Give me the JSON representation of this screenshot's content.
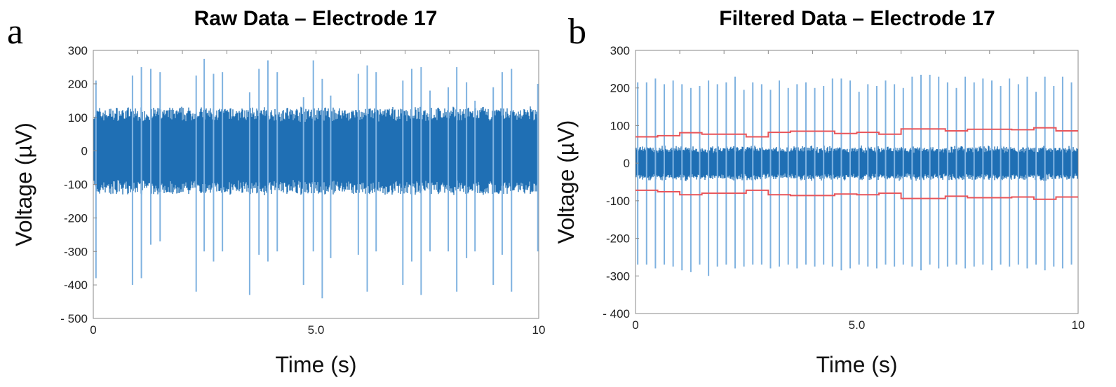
{
  "chart_data": [
    {
      "panel_label": "a",
      "type": "line",
      "title": "Raw Data – Electrode 17",
      "xlabel": "Time (s)",
      "ylabel": "Voltage (µV)",
      "xlim": [
        0,
        10
      ],
      "ylim": [
        -500,
        300
      ],
      "xticks": [
        {
          "v": 0,
          "label": "0"
        },
        {
          "v": 5,
          "label": "5.0"
        },
        {
          "v": 10,
          "label": "10"
        }
      ],
      "yticks": [
        {
          "v": 300,
          "label": "300"
        },
        {
          "v": 200,
          "label": "200"
        },
        {
          "v": 100,
          "label": "100"
        },
        {
          "v": 0,
          "label": "0"
        },
        {
          "v": -100,
          "label": "-100"
        },
        {
          "v": -200,
          "label": "-200"
        },
        {
          "v": -300,
          "label": "-300"
        },
        {
          "v": -400,
          "label": "-400"
        },
        {
          "v": -500,
          "label": "- 500"
        }
      ],
      "series_color": "#1f6fb4",
      "spike_color": "#7fb2e0",
      "noise_envelope_uV": [
        -105,
        105
      ],
      "spikes": {
        "t": [
          0.06,
          0.88,
          1.08,
          1.29,
          1.5,
          2.31,
          2.49,
          2.7,
          2.9,
          3.51,
          3.72,
          3.92,
          4.13,
          4.72,
          4.94,
          5.14,
          5.33,
          5.95,
          6.15,
          6.35,
          6.95,
          7.15,
          7.36,
          7.56,
          7.97,
          8.16,
          8.38,
          8.57,
          8.98,
          9.18,
          9.39,
          9.98
        ],
        "max": [
          210,
          225,
          250,
          245,
          235,
          225,
          275,
          230,
          235,
          175,
          245,
          270,
          235,
          160,
          270,
          215,
          165,
          230,
          255,
          235,
          210,
          245,
          250,
          180,
          190,
          250,
          205,
          150,
          190,
          235,
          245,
          200
        ],
        "min": [
          -380,
          -400,
          -380,
          -280,
          -270,
          -420,
          -300,
          -330,
          -300,
          -430,
          -310,
          -330,
          -300,
          -400,
          -300,
          -440,
          -320,
          -310,
          -420,
          -300,
          -400,
          -330,
          -430,
          -300,
          -300,
          -420,
          -320,
          -300,
          -400,
          -310,
          -420,
          -300
        ]
      }
    },
    {
      "panel_label": "b",
      "type": "line",
      "title": "Filtered Data – Electrode 17",
      "xlabel": "Time (s)",
      "ylabel": "Voltage (µV)",
      "xlim": [
        0,
        10
      ],
      "ylim": [
        -400,
        300
      ],
      "xticks": [
        {
          "v": 0,
          "label": "0"
        },
        {
          "v": 5,
          "label": "5.0"
        },
        {
          "v": 10,
          "label": "10"
        }
      ],
      "yticks": [
        {
          "v": 300,
          "label": "300"
        },
        {
          "v": 200,
          "label": "200"
        },
        {
          "v": 100,
          "label": "100"
        },
        {
          "v": 0,
          "label": "0"
        },
        {
          "v": -100,
          "label": "-100"
        },
        {
          "v": -200,
          "label": "-200"
        },
        {
          "v": -300,
          "label": "-300"
        },
        {
          "v": -400,
          "label": "- 400"
        }
      ],
      "series_color": "#1f6fb4",
      "spike_color": "#7fb2e0",
      "threshold_color": "#e8555a",
      "noise_envelope_uV": [
        -32,
        32
      ],
      "spikes": {
        "t": [
          0.05,
          0.25,
          0.45,
          0.65,
          0.85,
          1.05,
          1.25,
          1.45,
          1.65,
          1.85,
          2.05,
          2.25,
          2.45,
          2.65,
          2.85,
          3.05,
          3.25,
          3.45,
          3.65,
          3.85,
          4.05,
          4.25,
          4.45,
          4.65,
          4.85,
          5.05,
          5.25,
          5.45,
          5.65,
          5.85,
          6.05,
          6.25,
          6.45,
          6.65,
          6.85,
          7.05,
          7.25,
          7.45,
          7.65,
          7.85,
          8.05,
          8.25,
          8.45,
          8.65,
          8.85,
          9.05,
          9.25,
          9.45,
          9.65,
          9.85
        ],
        "max": [
          215,
          215,
          225,
          210,
          220,
          210,
          200,
          205,
          220,
          210,
          215,
          230,
          195,
          215,
          210,
          195,
          220,
          200,
          210,
          215,
          200,
          205,
          225,
          225,
          220,
          190,
          210,
          205,
          220,
          210,
          200,
          230,
          235,
          235,
          230,
          215,
          200,
          230,
          215,
          225,
          220,
          205,
          225,
          210,
          230,
          190,
          230,
          205,
          230,
          215
        ],
        "min": [
          -270,
          -270,
          -280,
          -270,
          -275,
          -285,
          -290,
          -270,
          -300,
          -275,
          -270,
          -280,
          -275,
          -270,
          -270,
          -280,
          -275,
          -270,
          -280,
          -270,
          -275,
          -270,
          -275,
          -285,
          -280,
          -270,
          -275,
          -280,
          -270,
          -275,
          -270,
          -275,
          -285,
          -270,
          -280,
          -275,
          -270,
          -280,
          -275,
          -270,
          -285,
          -270,
          -275,
          -270,
          -280,
          -270,
          -285,
          -275,
          -280,
          -270
        ]
      },
      "thresholds": {
        "t_edges": [
          0,
          0.5,
          1.0,
          1.5,
          2.0,
          2.5,
          3.0,
          3.5,
          4.0,
          4.5,
          5.0,
          5.5,
          6.0,
          6.5,
          7.0,
          7.5,
          8.0,
          8.5,
          9.0,
          9.5,
          10
        ],
        "upper": [
          70,
          73,
          81,
          77,
          77,
          70,
          82,
          85,
          85,
          79,
          82,
          77,
          91,
          91,
          86,
          90,
          90,
          89,
          94,
          86
        ],
        "lower": [
          -72,
          -76,
          -84,
          -80,
          -80,
          -72,
          -84,
          -86,
          -86,
          -82,
          -84,
          -80,
          -94,
          -94,
          -88,
          -92,
          -92,
          -90,
          -96,
          -90
        ]
      }
    }
  ]
}
